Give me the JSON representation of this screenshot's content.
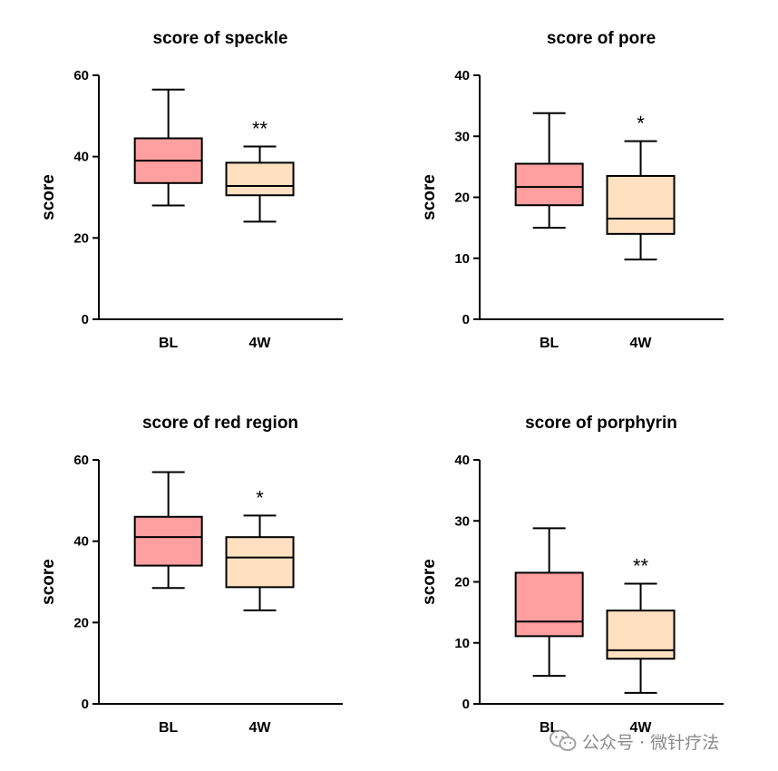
{
  "chart_data": [
    {
      "type": "box",
      "title": "score of speckle",
      "ylabel": "score",
      "ylim": [
        0,
        60
      ],
      "yticks": [
        0,
        20,
        40,
        60
      ],
      "categories": [
        "BL",
        "4W"
      ],
      "boxes": [
        {
          "name": "BL",
          "min": 28,
          "q1": 33.5,
          "median": 39,
          "q3": 44.5,
          "max": 56.5,
          "color": "#ff9f9f",
          "significance": ""
        },
        {
          "name": "4W",
          "min": 24,
          "q1": 30.5,
          "median": 32.8,
          "q3": 38.5,
          "max": 42.5,
          "color": "#ffe0c0",
          "significance": "**"
        }
      ]
    },
    {
      "type": "box",
      "title": "score of pore",
      "ylabel": "score",
      "ylim": [
        0,
        40
      ],
      "yticks": [
        0,
        10,
        20,
        30,
        40
      ],
      "categories": [
        "BL",
        "4W"
      ],
      "boxes": [
        {
          "name": "BL",
          "min": 15,
          "q1": 18.7,
          "median": 21.7,
          "q3": 25.5,
          "max": 33.8,
          "color": "#ff9f9f",
          "significance": ""
        },
        {
          "name": "4W",
          "min": 9.8,
          "q1": 14,
          "median": 16.5,
          "q3": 23.5,
          "max": 29.2,
          "color": "#ffe0c0",
          "significance": "*"
        }
      ]
    },
    {
      "type": "box",
      "title": "score of red region",
      "ylabel": "score",
      "ylim": [
        0,
        60
      ],
      "yticks": [
        0,
        20,
        40,
        60
      ],
      "categories": [
        "BL",
        "4W"
      ],
      "boxes": [
        {
          "name": "BL",
          "min": 28.5,
          "q1": 34,
          "median": 41,
          "q3": 46,
          "max": 57,
          "color": "#ff9f9f",
          "significance": ""
        },
        {
          "name": "4W",
          "min": 23,
          "q1": 28.7,
          "median": 36,
          "q3": 41,
          "max": 46.3,
          "color": "#ffe0c0",
          "significance": "*"
        }
      ]
    },
    {
      "type": "box",
      "title": "score of porphyrin",
      "ylabel": "score",
      "ylim": [
        0,
        40
      ],
      "yticks": [
        0,
        10,
        20,
        30,
        40
      ],
      "categories": [
        "BL",
        "4W"
      ],
      "boxes": [
        {
          "name": "BL",
          "min": 4.6,
          "q1": 11.1,
          "median": 13.5,
          "q3": 21.5,
          "max": 28.8,
          "color": "#ff9f9f",
          "significance": ""
        },
        {
          "name": "4W",
          "min": 1.8,
          "q1": 7.4,
          "median": 8.8,
          "q3": 15.3,
          "max": 19.7,
          "color": "#ffe0c0",
          "significance": "**"
        }
      ]
    }
  ],
  "watermark": {
    "text": "公众号 · 微针疗法",
    "icon": "wechat-icon"
  }
}
